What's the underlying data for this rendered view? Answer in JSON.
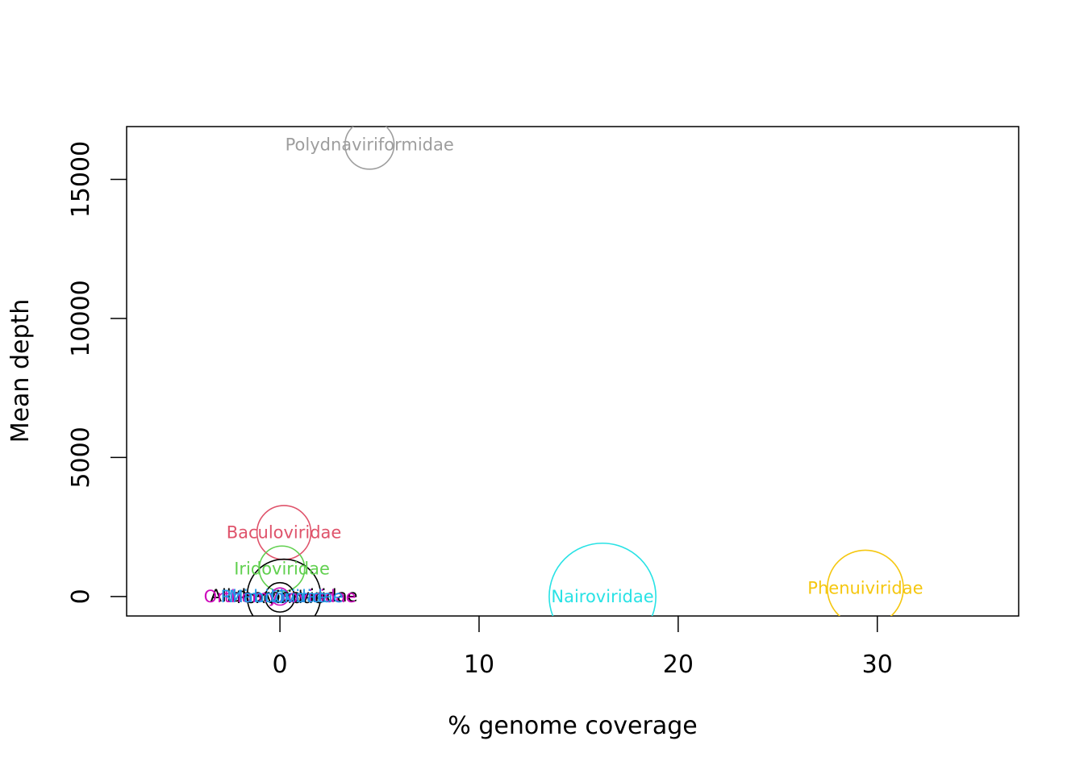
{
  "chart_data": {
    "type": "scatter",
    "title": "",
    "xlabel": "% genome coverage",
    "ylabel": "Mean depth",
    "xlim": [
      -7.7,
      37.1
    ],
    "ylim": [
      -700,
      16900
    ],
    "x_ticks": [
      0,
      10,
      20,
      30
    ],
    "y_ticks": [
      0,
      5000,
      10000,
      15000
    ],
    "x_tick_labels": [
      "0",
      "10",
      "20",
      "30"
    ],
    "y_tick_labels": [
      "0",
      "5000",
      "10000",
      "15000"
    ],
    "grid": false,
    "legend": "none",
    "points": [
      {
        "label": "Polydnaviriformidae",
        "x": 4.5,
        "y": 16250,
        "size": 0.4,
        "color": "#9e9e9e"
      },
      {
        "label": "Baculoviridae",
        "x": 0.2,
        "y": 2300,
        "size": 0.44,
        "color": "#df536b"
      },
      {
        "label": "Iridoviridae",
        "x": 0.1,
        "y": 1000,
        "size": 0.37,
        "color": "#61d04f"
      },
      {
        "label": "Nairoviridae",
        "x": 16.2,
        "y": 0,
        "size": 0.87,
        "color": "#28e2e5"
      },
      {
        "label": "Phenuiviridae",
        "x": 29.4,
        "y": 300,
        "size": 0.62,
        "color": "#f5c710"
      },
      {
        "label": "Alloherpesviridae",
        "x": 0.2,
        "y": 20,
        "size": 0.6,
        "color": "#000000"
      },
      {
        "label": "Poxviridae",
        "x": 0.0,
        "y": -30,
        "size": 0.24,
        "color": "#000000"
      },
      {
        "label": "Orthomyxoviridae",
        "x": 0.0,
        "y": 0,
        "size": 0.14,
        "color": "#cd0bbc"
      },
      {
        "label": "Mimiviridae",
        "x": -0.1,
        "y": 0,
        "size": 0.1,
        "color": "#2297e6"
      },
      {
        "label": "Rhabdoviridae",
        "x": 0.1,
        "y": 0,
        "size": 0.1,
        "color": "#2297e6"
      }
    ]
  }
}
